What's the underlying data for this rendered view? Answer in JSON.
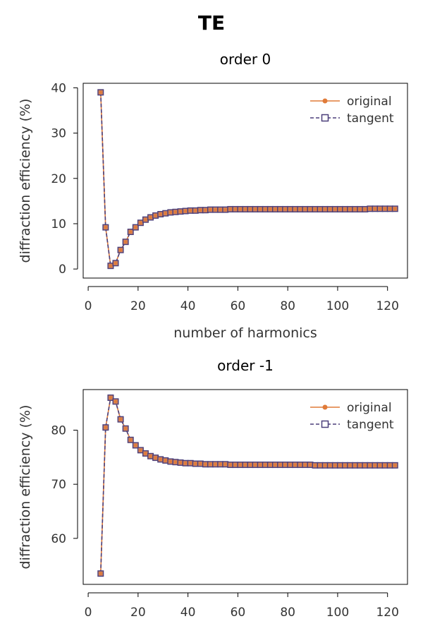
{
  "figure": {
    "title": "TE"
  },
  "colors": {
    "original": "#e07b39",
    "tangent": "#4b3f7a"
  },
  "chart_data": [
    {
      "type": "line",
      "title": "order 0",
      "xlabel": "number of harmonics",
      "ylabel": "diffraction efficiency (%)",
      "xlim": [
        -2,
        128
      ],
      "ylim": [
        -2,
        41
      ],
      "xticks": [
        0,
        20,
        40,
        60,
        80,
        100,
        120
      ],
      "yticks": [
        0,
        10,
        20,
        30,
        40
      ],
      "legend": {
        "placement": "upper-right",
        "entries": [
          "original",
          "tangent"
        ]
      },
      "x": [
        5,
        7,
        9,
        11,
        13,
        15,
        17,
        19,
        21,
        23,
        25,
        27,
        29,
        31,
        33,
        35,
        37,
        39,
        41,
        43,
        45,
        47,
        49,
        51,
        53,
        55,
        57,
        59,
        61,
        63,
        65,
        67,
        69,
        71,
        73,
        75,
        77,
        79,
        81,
        83,
        85,
        87,
        89,
        91,
        93,
        95,
        97,
        99,
        101,
        103,
        105,
        107,
        109,
        111,
        113,
        115,
        117,
        119,
        121,
        123
      ],
      "series": [
        {
          "name": "original",
          "marker": "circle",
          "linestyle": "solid",
          "values": [
            39.0,
            9.2,
            0.7,
            1.3,
            4.2,
            6.0,
            8.2,
            9.2,
            10.2,
            10.9,
            11.4,
            11.8,
            12.1,
            12.3,
            12.5,
            12.6,
            12.7,
            12.8,
            12.9,
            12.9,
            13.0,
            13.0,
            13.1,
            13.1,
            13.1,
            13.1,
            13.2,
            13.2,
            13.2,
            13.2,
            13.2,
            13.2,
            13.2,
            13.2,
            13.2,
            13.2,
            13.2,
            13.2,
            13.2,
            13.2,
            13.2,
            13.2,
            13.2,
            13.2,
            13.2,
            13.2,
            13.2,
            13.2,
            13.2,
            13.2,
            13.2,
            13.2,
            13.2,
            13.2,
            13.3,
            13.3,
            13.3,
            13.3,
            13.3,
            13.3
          ]
        },
        {
          "name": "tangent",
          "marker": "square",
          "linestyle": "dashed",
          "values": [
            39.0,
            9.2,
            0.7,
            1.3,
            4.2,
            6.0,
            8.2,
            9.2,
            10.2,
            10.9,
            11.4,
            11.8,
            12.1,
            12.3,
            12.5,
            12.6,
            12.7,
            12.8,
            12.9,
            12.9,
            13.0,
            13.0,
            13.1,
            13.1,
            13.1,
            13.1,
            13.2,
            13.2,
            13.2,
            13.2,
            13.2,
            13.2,
            13.2,
            13.2,
            13.2,
            13.2,
            13.2,
            13.2,
            13.2,
            13.2,
            13.2,
            13.2,
            13.2,
            13.2,
            13.2,
            13.2,
            13.2,
            13.2,
            13.2,
            13.2,
            13.2,
            13.2,
            13.2,
            13.2,
            13.3,
            13.3,
            13.3,
            13.3,
            13.3,
            13.3
          ]
        }
      ]
    },
    {
      "type": "line",
      "title": "order -1",
      "xlabel": "",
      "ylabel": "diffraction efficiency (%)",
      "xlim": [
        -2,
        128
      ],
      "ylim": [
        51.5,
        87.5
      ],
      "xticks": [
        0,
        20,
        40,
        60,
        80,
        100,
        120
      ],
      "yticks": [
        60,
        70,
        80
      ],
      "legend": {
        "placement": "upper-right",
        "entries": [
          "original",
          "tangent"
        ]
      },
      "x": [
        5,
        7,
        9,
        11,
        13,
        15,
        17,
        19,
        21,
        23,
        25,
        27,
        29,
        31,
        33,
        35,
        37,
        39,
        41,
        43,
        45,
        47,
        49,
        51,
        53,
        55,
        57,
        59,
        61,
        63,
        65,
        67,
        69,
        71,
        73,
        75,
        77,
        79,
        81,
        83,
        85,
        87,
        89,
        91,
        93,
        95,
        97,
        99,
        101,
        103,
        105,
        107,
        109,
        111,
        113,
        115,
        117,
        119,
        121,
        123
      ],
      "series": [
        {
          "name": "original",
          "marker": "circle",
          "linestyle": "solid",
          "values": [
            53.5,
            80.5,
            86.0,
            85.3,
            82.0,
            80.3,
            78.2,
            77.2,
            76.3,
            75.7,
            75.2,
            74.9,
            74.6,
            74.4,
            74.2,
            74.1,
            74.0,
            73.9,
            73.9,
            73.8,
            73.8,
            73.7,
            73.7,
            73.7,
            73.7,
            73.7,
            73.6,
            73.6,
            73.6,
            73.6,
            73.6,
            73.6,
            73.6,
            73.6,
            73.6,
            73.6,
            73.6,
            73.6,
            73.6,
            73.6,
            73.6,
            73.6,
            73.6,
            73.5,
            73.5,
            73.5,
            73.5,
            73.5,
            73.5,
            73.5,
            73.5,
            73.5,
            73.5,
            73.5,
            73.5,
            73.5,
            73.5,
            73.5,
            73.5,
            73.5
          ]
        },
        {
          "name": "tangent",
          "marker": "square",
          "linestyle": "dashed",
          "values": [
            53.5,
            80.5,
            86.0,
            85.3,
            82.0,
            80.3,
            78.2,
            77.2,
            76.3,
            75.7,
            75.2,
            74.9,
            74.6,
            74.4,
            74.2,
            74.1,
            74.0,
            73.9,
            73.9,
            73.8,
            73.8,
            73.7,
            73.7,
            73.7,
            73.7,
            73.7,
            73.6,
            73.6,
            73.6,
            73.6,
            73.6,
            73.6,
            73.6,
            73.6,
            73.6,
            73.6,
            73.6,
            73.6,
            73.6,
            73.6,
            73.6,
            73.6,
            73.6,
            73.5,
            73.5,
            73.5,
            73.5,
            73.5,
            73.5,
            73.5,
            73.5,
            73.5,
            73.5,
            73.5,
            73.5,
            73.5,
            73.5,
            73.5,
            73.5,
            73.5
          ]
        }
      ]
    }
  ]
}
